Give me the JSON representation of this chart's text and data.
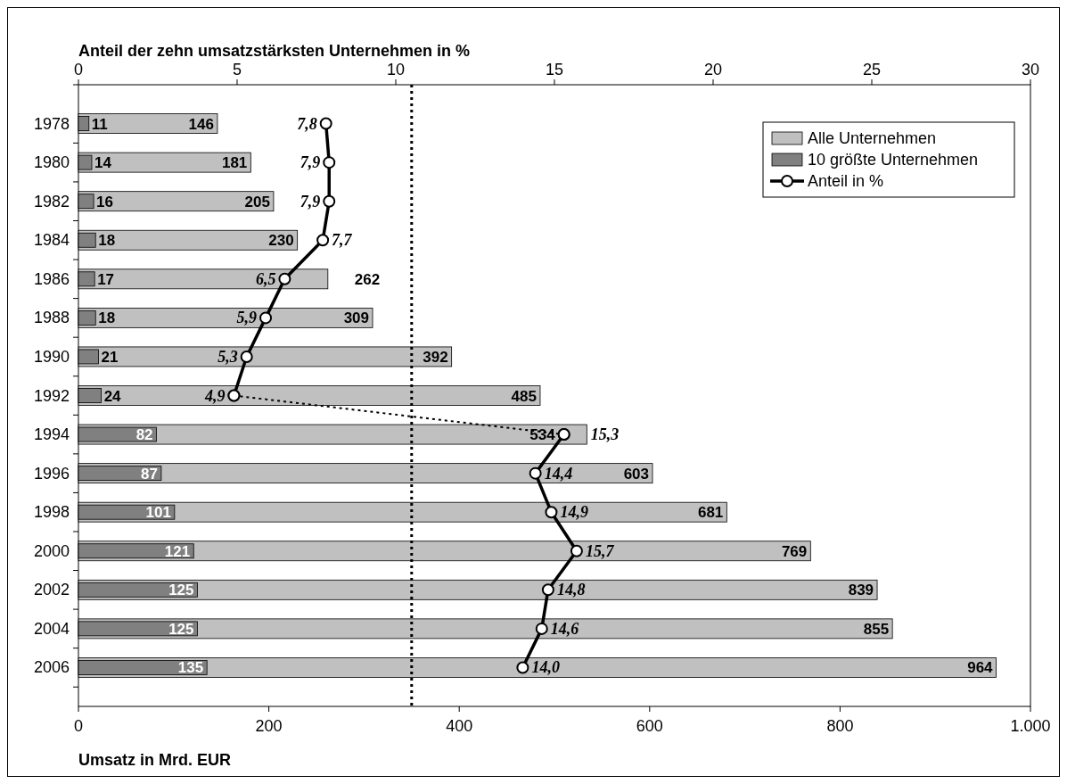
{
  "chart_data": {
    "type": "bar",
    "orientation": "horizontal",
    "xlabel": "Umsatz in Mrd. EUR",
    "x2label": "Anteil der zehn umsatzstärksten Unternehmen in %",
    "categories": [
      "1978",
      "1980",
      "1982",
      "1984",
      "1986",
      "1988",
      "1990",
      "1992",
      "1994",
      "1996",
      "1998",
      "2000",
      "2002",
      "2004",
      "2006"
    ],
    "series": [
      {
        "name": "Alle Unternehmen",
        "color": "#c0c0c0",
        "values": [
          146,
          181,
          205,
          230,
          262,
          309,
          392,
          485,
          534,
          603,
          681,
          769,
          839,
          855,
          964
        ],
        "value_labels": [
          "146",
          "181",
          "205",
          "230",
          "262",
          "309",
          "392",
          "485",
          "534",
          "603",
          "681",
          "769",
          "839",
          "855",
          "964"
        ]
      },
      {
        "name": "10 größte Unternehmen",
        "color": "#808080",
        "values": [
          11,
          14,
          16,
          18,
          17,
          18,
          21,
          24,
          82,
          87,
          101,
          121,
          125,
          125,
          135
        ],
        "value_labels": [
          "11",
          "14",
          "16",
          "18",
          "17",
          "18",
          "21",
          "24",
          "82",
          "87",
          "101",
          "121",
          "125",
          "125",
          "135"
        ]
      },
      {
        "name": "Anteil in %",
        "type": "line",
        "axis": "x2",
        "color": "#000000",
        "marker": "circle",
        "line_style": "solid",
        "values": [
          7.8,
          7.9,
          7.9,
          7.7,
          6.5,
          5.9,
          5.3,
          4.9,
          null,
          null,
          null,
          null,
          null,
          null,
          null
        ],
        "value_labels": [
          "7,8",
          "7,9",
          "7,9",
          "7,7",
          "6,5",
          "5,9",
          "5,3",
          "4,9",
          null,
          null,
          null,
          null,
          null,
          null,
          null
        ]
      },
      {
        "type": "line",
        "axis": "x2",
        "color": "#000000",
        "marker": "circle",
        "line_style": "solid",
        "values": [
          null,
          null,
          null,
          null,
          null,
          null,
          null,
          null,
          15.3,
          14.4,
          14.9,
          15.7,
          14.8,
          14.6,
          14.0
        ],
        "value_labels": [
          null,
          null,
          null,
          null,
          null,
          null,
          null,
          null,
          "15,3",
          "14,4",
          "14,9",
          "15,7",
          "14,8",
          "14,6",
          "14,0"
        ]
      },
      {
        "type": "line",
        "axis": "x2",
        "color": "#000000",
        "marker": "circle",
        "line_style": "dotted",
        "values": [
          null,
          null,
          null,
          null,
          null,
          null,
          null,
          4.9,
          15.3,
          null,
          null,
          null,
          null,
          null,
          null
        ]
      }
    ],
    "xlim": [
      0,
      1000
    ],
    "xticks": [
      0,
      200,
      400,
      600,
      800,
      {
        "value": 1000,
        "label": "1.000"
      }
    ],
    "x2lim": [
      0,
      30
    ],
    "x2ticks": [
      0,
      5,
      10,
      15,
      20,
      25,
      30
    ],
    "ref_lines": [
      {
        "axis": "x",
        "value": 350,
        "line_style": "dotted",
        "color": "#000000"
      }
    ],
    "grid": false,
    "legend": "top right"
  }
}
